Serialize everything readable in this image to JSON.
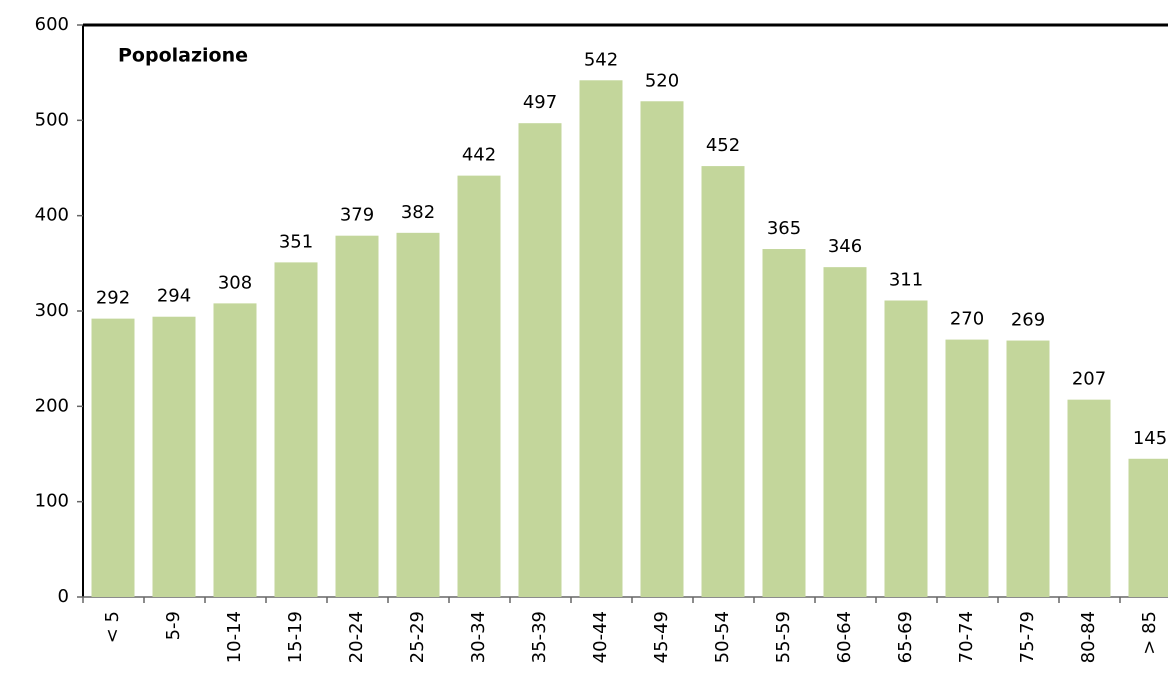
{
  "chart_data": {
    "type": "bar",
    "title": "Popolazione",
    "categories": [
      "< 5",
      "5-9",
      "10-14",
      "15-19",
      "20-24",
      "25-29",
      "30-34",
      "35-39",
      "40-44",
      "45-49",
      "50-54",
      "55-59",
      "60-64",
      "65-69",
      "70-74",
      "75-79",
      "80-84",
      "> 85"
    ],
    "values": [
      292,
      294,
      308,
      351,
      379,
      382,
      442,
      497,
      542,
      520,
      452,
      365,
      346,
      311,
      270,
      269,
      207,
      145
    ],
    "color": "#c3d69b",
    "ylim": [
      0,
      600
    ],
    "yticks": [
      0,
      100,
      200,
      300,
      400,
      500,
      600
    ],
    "grid": false
  }
}
